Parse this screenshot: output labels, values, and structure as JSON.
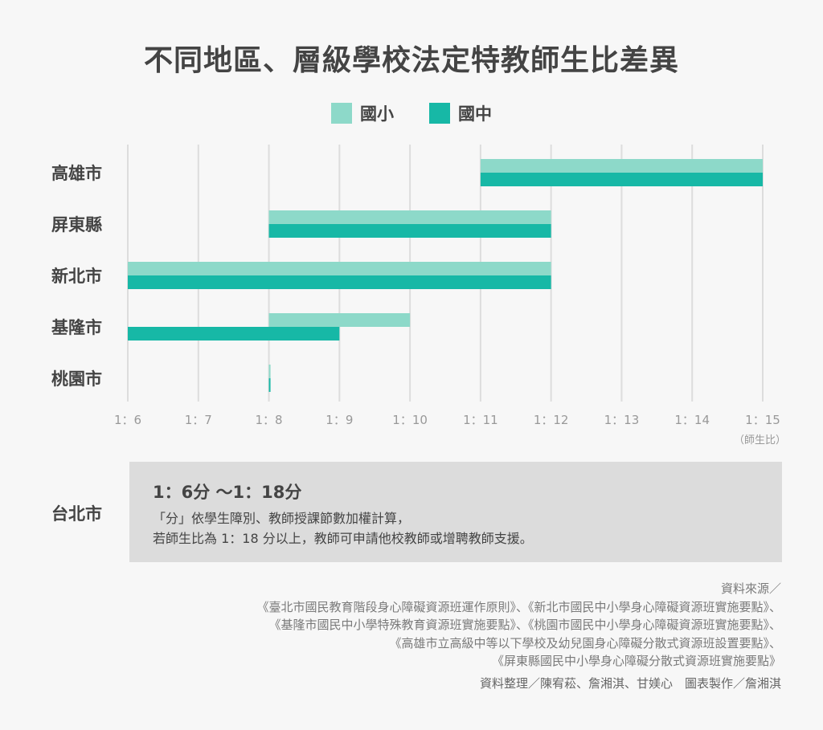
{
  "title": "不同地區、層級學校法定特教師生比差異",
  "colors": {
    "elementary": "#8dd9c9",
    "junior": "#17b8a6",
    "grid": "#dddddd"
  },
  "chart_data": {
    "type": "bar",
    "orientation": "horizontal-range",
    "title": "不同地區、層級學校法定特教師生比差異",
    "legend": [
      "國小",
      "國中"
    ],
    "legend_placement": "top-center",
    "categories": [
      "高雄市",
      "屏東縣",
      "新北市",
      "基隆市",
      "桃園市"
    ],
    "series": [
      {
        "name": "國小",
        "ranges": [
          [
            11,
            15
          ],
          [
            8,
            12
          ],
          [
            6,
            12
          ],
          [
            8,
            10
          ],
          [
            8,
            8
          ]
        ]
      },
      {
        "name": "國中",
        "ranges": [
          [
            11,
            15
          ],
          [
            8,
            12
          ],
          [
            6,
            12
          ],
          [
            6,
            9
          ],
          [
            8,
            8
          ]
        ]
      }
    ],
    "xlim": [
      6,
      15
    ],
    "xticks": [
      6,
      7,
      8,
      9,
      10,
      11,
      12,
      13,
      14,
      15
    ],
    "xtick_labels": [
      "1：6",
      "1：7",
      "1：8",
      "1：9",
      "1：10",
      "1：11",
      "1：12",
      "1：13",
      "1：14",
      "1：15"
    ],
    "xlabel": "（師生比）",
    "grid": "vertical"
  },
  "note": {
    "city": "台北市",
    "range": "1：6分 ～1：18分",
    "line1": "「分」依學生障別、教師授課節數加權計算，",
    "line2": "若師生比為 1：18 分以上，教師可申請他校教師或增聘教師支援。"
  },
  "source": {
    "label": "資料來源／",
    "lines": [
      "《臺北市國民教育階段身心障礙資源班運作原則》、《新北市國民中小學身心障礙資源班實施要點》、",
      "《基隆市國民中小學特殊教育資源班實施要點》、《桃園市國民中小學身心障礙資源班實施要點》、",
      "《高雄市立高級中等以下學校及幼兒園身心障礙分散式資源班設置要點》、",
      "《屏東縣國民中小學身心障礙分散式資源班實施要點》"
    ]
  },
  "credit": "資料整理／陳宥菘、詹湘淇、甘媄心　圖表製作／詹湘淇"
}
